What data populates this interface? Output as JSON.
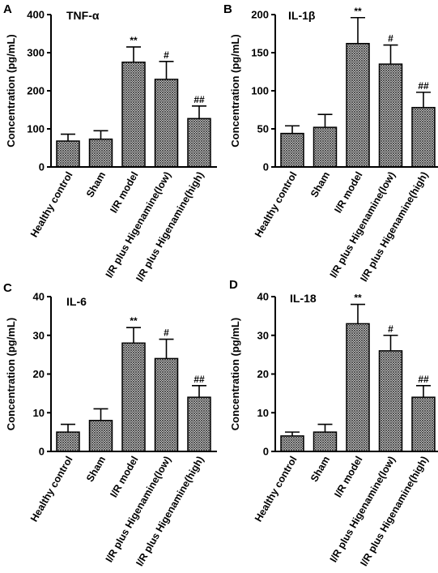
{
  "colors": {
    "bar_fill": "#8c8c8c",
    "bar_stroke": "#000000",
    "axis": "#000000"
  },
  "chart_data": [
    {
      "panel": "A",
      "type": "bar",
      "title": "TNF-α",
      "ylabel": "Concentration (pg/mL)",
      "ylim": [
        0,
        400
      ],
      "yticks": [
        "0",
        "100",
        "200",
        "300",
        "400"
      ],
      "categories": [
        "Healthy control",
        "Sham",
        "I/R model",
        "I/R plus Higenamine(low)",
        "I/R plus Higenamine(high)"
      ],
      "values": [
        68,
        73,
        275,
        230,
        127
      ],
      "errors": [
        18,
        22,
        40,
        47,
        33
      ],
      "annotations": [
        "",
        "",
        "**",
        "#",
        "##"
      ]
    },
    {
      "panel": "B",
      "type": "bar",
      "title": "IL-1β",
      "ylabel": "Concentration (pg/mL)",
      "ylim": [
        0,
        200
      ],
      "yticks": [
        "0",
        "50",
        "100",
        "150",
        "200"
      ],
      "categories": [
        "Healthy control",
        "Sham",
        "I/R model",
        "I/R plus Higenamine(low)",
        "I/R plus Higenamine(high)"
      ],
      "values": [
        44,
        52,
        162,
        135,
        78
      ],
      "errors": [
        10,
        17,
        34,
        25,
        20
      ],
      "annotations": [
        "",
        "",
        "**",
        "#",
        "##"
      ]
    },
    {
      "panel": "C",
      "type": "bar",
      "title": "IL-6",
      "ylabel": "Concentration (pg/mL)",
      "ylim": [
        0,
        40
      ],
      "yticks": [
        "0",
        "10",
        "20",
        "30",
        "40"
      ],
      "categories": [
        "Healthy control",
        "Sham",
        "I/R model",
        "I/R plus Higenamine(low)",
        "I/R plus Higenamine(high)"
      ],
      "values": [
        5,
        8,
        28,
        24,
        14
      ],
      "errors": [
        2,
        3,
        4,
        5,
        3
      ],
      "annotations": [
        "",
        "",
        "**",
        "#",
        "##"
      ]
    },
    {
      "panel": "D",
      "type": "bar",
      "title": "IL-18",
      "ylabel": "Concentration (pg/mL)",
      "ylim": [
        0,
        40
      ],
      "yticks": [
        "0",
        "10",
        "20",
        "30",
        "40"
      ],
      "categories": [
        "Healthy control",
        "Sham",
        "I/R model",
        "I/R plus Higenamine(low)",
        "I/R plus Higenamine(high)"
      ],
      "values": [
        4,
        5,
        33,
        26,
        14
      ],
      "errors": [
        1,
        2,
        5,
        4,
        3
      ],
      "annotations": [
        "",
        "",
        "**",
        "#",
        "##"
      ]
    }
  ]
}
